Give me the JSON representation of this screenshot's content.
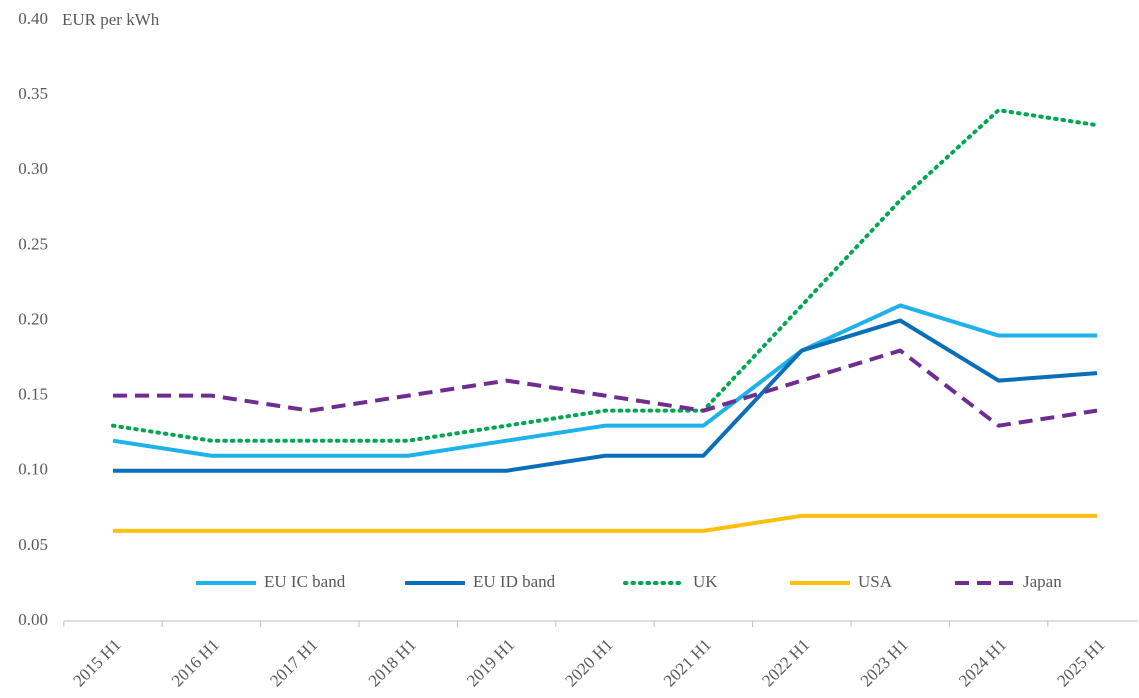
{
  "chart_data": {
    "type": "line",
    "y_label": "EUR per kWh",
    "categories": [
      "2015 H1",
      "2016 H1",
      "2017 H1",
      "2018 H1",
      "2019 H1",
      "2020 H1",
      "2021 H1",
      "2022 H1",
      "2023 H1",
      "2024 H1",
      "2025 H1"
    ],
    "series": [
      {
        "name": "EU IC band",
        "color": "#1eb1ea",
        "style": "solid",
        "values": [
          0.12,
          0.11,
          0.11,
          0.11,
          0.12,
          0.13,
          0.13,
          0.18,
          0.21,
          0.19,
          0.19
        ]
      },
      {
        "name": "EU ID band",
        "color": "#0a6fb8",
        "style": "solid",
        "values": [
          0.1,
          0.1,
          0.1,
          0.1,
          0.1,
          0.11,
          0.11,
          0.18,
          0.2,
          0.16,
          0.165
        ]
      },
      {
        "name": "UK",
        "color": "#00a651",
        "style": "dotted",
        "values": [
          0.13,
          0.12,
          0.12,
          0.12,
          0.13,
          0.14,
          0.14,
          0.21,
          0.28,
          0.34,
          0.33
        ]
      },
      {
        "name": "USA",
        "color": "#fbbf0e",
        "style": "solid",
        "values": [
          0.06,
          0.06,
          0.06,
          0.06,
          0.06,
          0.06,
          0.06,
          0.07,
          0.07,
          0.07,
          0.07
        ]
      },
      {
        "name": "Japan",
        "color": "#6f2c91",
        "style": "dashed",
        "values": [
          0.15,
          0.15,
          0.14,
          0.15,
          0.16,
          0.15,
          0.14,
          0.16,
          0.18,
          0.13,
          0.14
        ]
      }
    ],
    "ylim": [
      0,
      0.4
    ],
    "yticks": [
      {
        "value": 0,
        "label": "0.00"
      },
      0.05,
      {
        "value": 0.1,
        "label": "0.10"
      },
      0.15,
      {
        "value": 0.2,
        "label": "0.20"
      },
      0.25,
      {
        "value": 0.3,
        "label": "0.30"
      },
      0.35,
      {
        "value": 0.4,
        "label": "0.40"
      }
    ],
    "grid": false,
    "legend": "bottom"
  }
}
